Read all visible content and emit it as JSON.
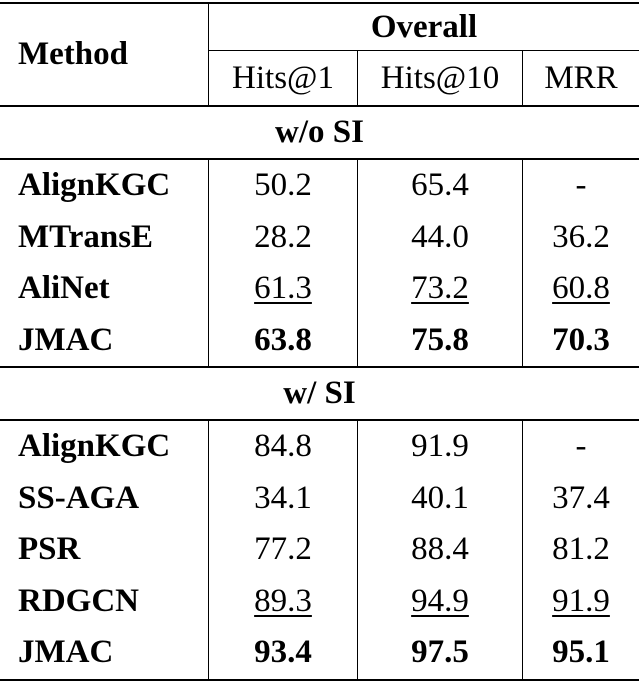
{
  "header": {
    "method": "Method",
    "group": "Overall",
    "columns": [
      "Hits@1",
      "Hits@10",
      "MRR"
    ]
  },
  "sections": [
    {
      "title": "w/o SI",
      "rows": [
        {
          "method": "AlignKGC",
          "values": [
            "50.2",
            "65.4",
            "-"
          ],
          "style": [
            "",
            "",
            ""
          ]
        },
        {
          "method": "MTransE",
          "values": [
            "28.2",
            "44.0",
            "36.2"
          ],
          "style": [
            "",
            "",
            ""
          ]
        },
        {
          "method": "AliNet",
          "values": [
            "61.3",
            "73.2",
            "60.8"
          ],
          "style": [
            "u",
            "u",
            "u"
          ]
        },
        {
          "method": "JMAC",
          "values": [
            "63.8",
            "75.8",
            "70.3"
          ],
          "style": [
            "b",
            "b",
            "b"
          ]
        }
      ]
    },
    {
      "title": "w/ SI",
      "rows": [
        {
          "method": "AlignKGC",
          "values": [
            "84.8",
            "91.9",
            "-"
          ],
          "style": [
            "",
            "",
            ""
          ]
        },
        {
          "method": "SS-AGA",
          "values": [
            "34.1",
            "40.1",
            "37.4"
          ],
          "style": [
            "",
            "",
            ""
          ]
        },
        {
          "method": "PSR",
          "values": [
            "77.2",
            "88.4",
            "81.2"
          ],
          "style": [
            "",
            "",
            ""
          ]
        },
        {
          "method": "RDGCN",
          "values": [
            "89.3",
            "94.9",
            "91.9"
          ],
          "style": [
            "u",
            "u",
            "u"
          ]
        },
        {
          "method": "JMAC",
          "values": [
            "93.4",
            "97.5",
            "95.1"
          ],
          "style": [
            "b",
            "b",
            "b"
          ]
        }
      ]
    }
  ],
  "chart_data": {
    "type": "table",
    "columns": [
      "Method",
      "Hits@1",
      "Hits@10",
      "MRR"
    ],
    "groups": {
      "w/o SI": [
        [
          "AlignKGC",
          50.2,
          65.4,
          null
        ],
        [
          "MTransE",
          28.2,
          44.0,
          36.2
        ],
        [
          "AliNet",
          61.3,
          73.2,
          60.8
        ],
        [
          "JMAC",
          63.8,
          75.8,
          70.3
        ]
      ],
      "w/ SI": [
        [
          "AlignKGC",
          84.8,
          91.9,
          null
        ],
        [
          "SS-AGA",
          34.1,
          40.1,
          37.4
        ],
        [
          "PSR",
          77.2,
          88.4,
          81.2
        ],
        [
          "RDGCN",
          89.3,
          94.9,
          91.9
        ],
        [
          "JMAC",
          93.4,
          97.5,
          95.1
        ]
      ]
    }
  }
}
